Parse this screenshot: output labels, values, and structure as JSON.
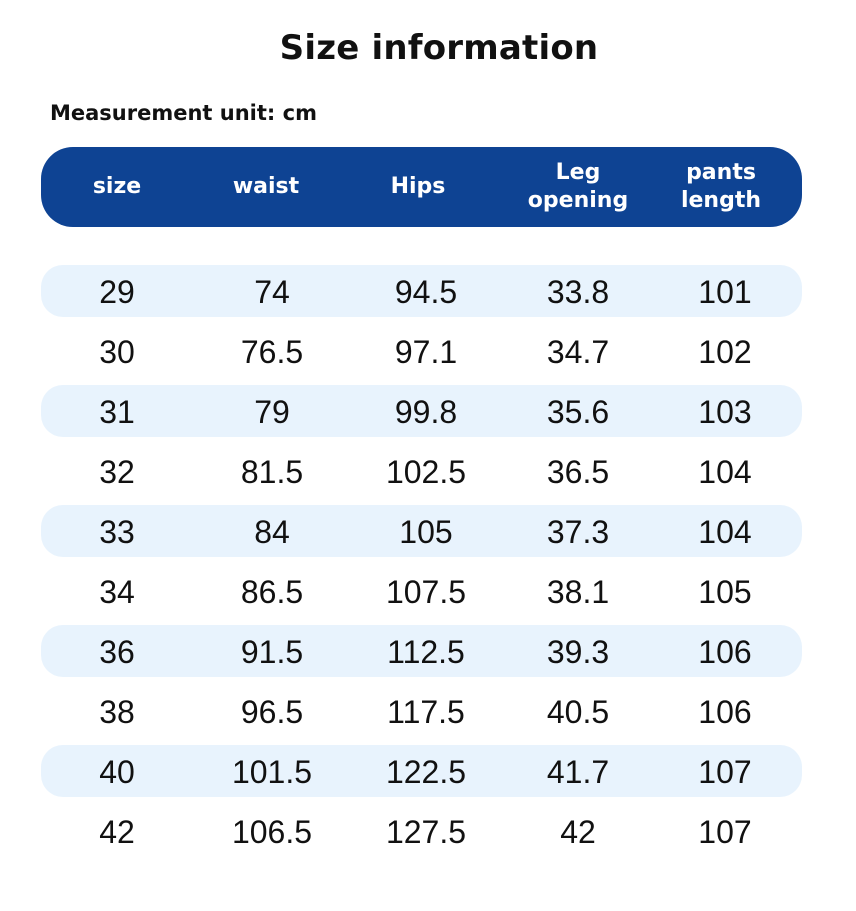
{
  "title": "Size information",
  "unit_label": "Measurement unit: cm",
  "colors": {
    "header_bg": "#0e4393",
    "row_shade": "#e8f3fd"
  },
  "columns": [
    {
      "line1": "size",
      "line2": ""
    },
    {
      "line1": "waist",
      "line2": ""
    },
    {
      "line1": "Hips",
      "line2": ""
    },
    {
      "line1": "Leg",
      "line2": "opening"
    },
    {
      "line1": "pants",
      "line2": "length"
    }
  ],
  "rows": [
    [
      "29",
      "74",
      "94.5",
      "33.8",
      "101"
    ],
    [
      "30",
      "76.5",
      "97.1",
      "34.7",
      "102"
    ],
    [
      "31",
      "79",
      "99.8",
      "35.6",
      "103"
    ],
    [
      "32",
      "81.5",
      "102.5",
      "36.5",
      "104"
    ],
    [
      "33",
      "84",
      "105",
      "37.3",
      "104"
    ],
    [
      "34",
      "86.5",
      "107.5",
      "38.1",
      "105"
    ],
    [
      "36",
      "91.5",
      "112.5",
      "39.3",
      "106"
    ],
    [
      "38",
      "96.5",
      "117.5",
      "40.5",
      "106"
    ],
    [
      "40",
      "101.5",
      "122.5",
      "41.7",
      "107"
    ],
    [
      "42",
      "106.5",
      "127.5",
      "42",
      "107"
    ]
  ]
}
